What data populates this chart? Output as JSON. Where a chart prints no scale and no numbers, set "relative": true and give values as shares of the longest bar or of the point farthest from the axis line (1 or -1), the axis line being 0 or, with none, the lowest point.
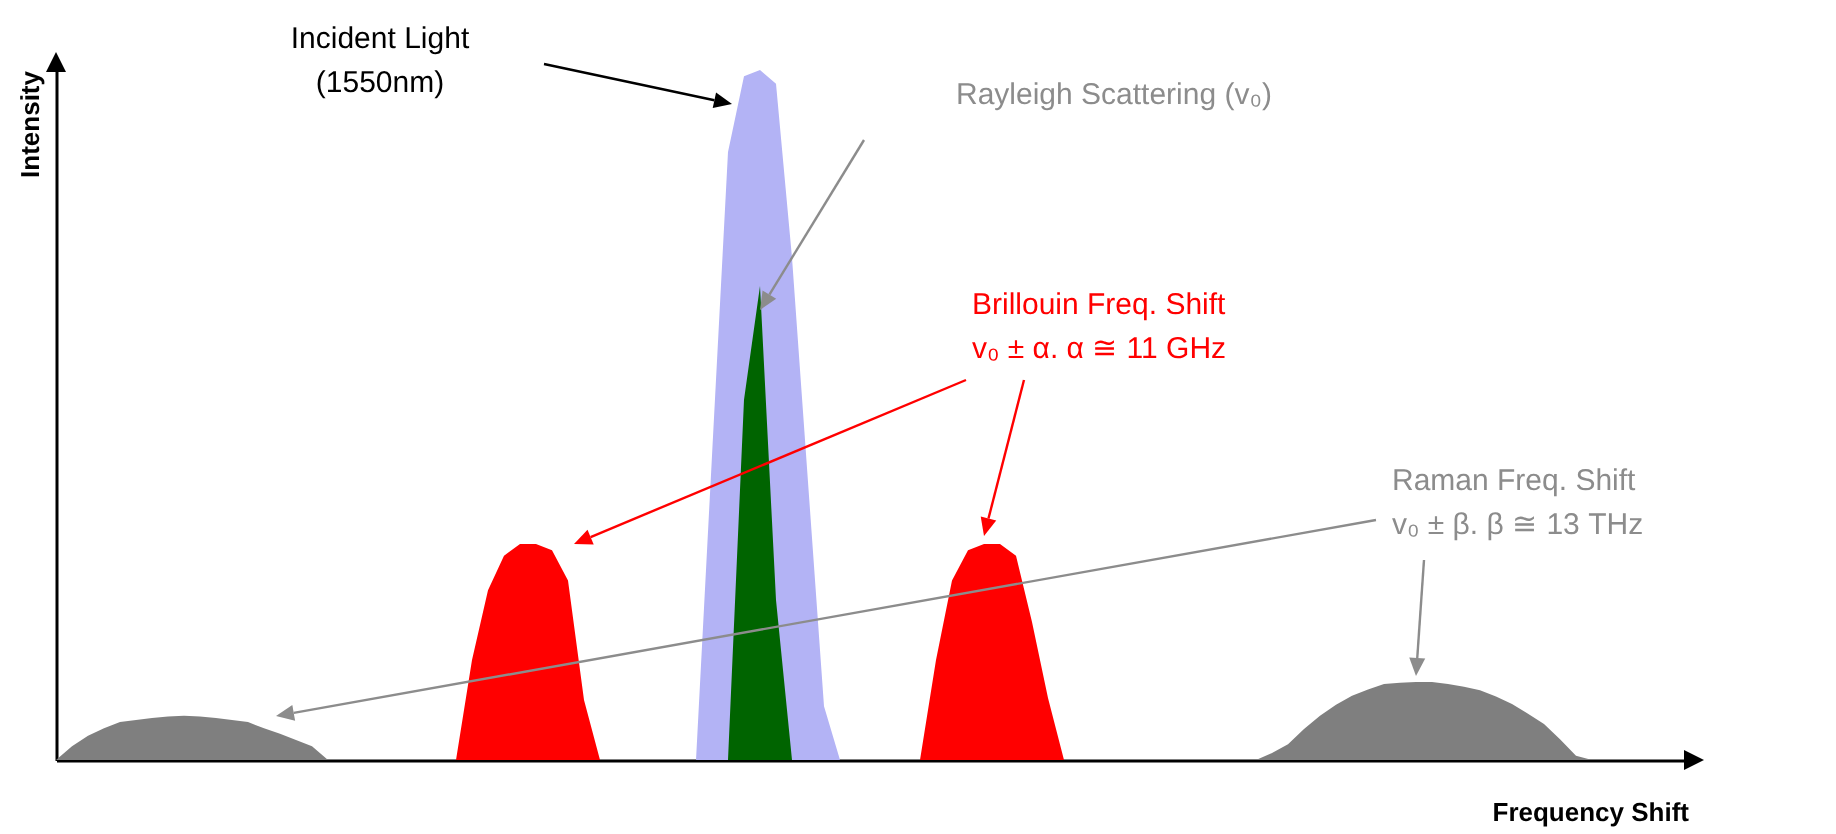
{
  "chart_data": {
    "type": "area",
    "relative": true,
    "xlabel": "Frequency Shift",
    "ylabel": "Intensity",
    "categories": [
      null,
      null,
      null,
      null,
      null,
      null,
      null,
      null,
      null,
      null,
      null,
      null,
      null,
      null,
      null,
      null,
      null,
      null,
      null,
      null,
      null,
      null,
      null,
      null,
      null,
      null,
      null,
      null,
      null,
      null,
      null,
      null,
      null,
      null,
      null,
      null,
      null,
      null,
      null,
      null,
      null,
      null,
      null,
      null,
      null,
      null,
      null,
      null,
      null,
      null,
      null,
      null,
      null,
      null,
      null,
      null,
      null,
      null,
      null,
      null,
      null,
      null,
      null,
      null,
      null,
      null,
      null,
      null,
      null,
      null,
      null,
      null,
      null,
      null,
      null,
      null,
      null,
      null,
      null,
      null,
      null,
      null,
      null,
      null,
      null,
      null,
      null,
      null,
      null,
      null,
      null,
      null,
      null,
      null,
      null,
      null,
      null,
      null,
      null,
      null,
      null,
      null,
      null
    ],
    "series": [
      {
        "color": "#7f7f7f",
        "values": [
          0,
          0.02,
          0.035,
          0.046,
          0.055,
          0.058,
          0.061,
          0.063,
          0.064,
          0.063,
          0.061,
          0.058,
          0.055,
          0.046,
          0.038,
          0.029,
          0.02,
          0,
          null,
          null,
          null,
          null,
          null,
          null,
          null,
          null,
          null,
          null,
          null,
          null,
          null,
          null,
          null,
          null,
          null,
          null,
          null,
          null,
          null,
          null,
          null,
          null,
          null,
          null,
          null,
          null,
          null,
          null,
          null,
          null,
          null,
          null,
          null,
          null,
          null,
          null,
          null,
          null,
          null,
          null,
          null,
          null,
          null,
          null,
          null,
          null,
          null,
          null,
          null,
          null,
          null,
          null,
          null,
          null,
          null,
          0,
          0.01,
          0.023,
          0.045,
          0.064,
          0.08,
          0.093,
          0.102,
          0.11,
          0.112,
          0.113,
          0.113,
          0.11,
          0.106,
          0.101,
          0.092,
          0.081,
          0.067,
          0.052,
          0.03,
          0.006,
          0,
          null,
          null,
          null,
          null,
          null,
          null
        ]
      },
      {
        "color": "#ff0000",
        "values": [
          null,
          null,
          null,
          null,
          null,
          null,
          null,
          null,
          null,
          null,
          null,
          null,
          null,
          null,
          null,
          null,
          null,
          null,
          null,
          null,
          null,
          null,
          null,
          null,
          null,
          0,
          0.145,
          0.246,
          0.296,
          0.313,
          0.313,
          0.304,
          0.26,
          0.087,
          0,
          null,
          null,
          null,
          null,
          null,
          null,
          null,
          null,
          null,
          null,
          null,
          null,
          null,
          null,
          null,
          null,
          null,
          null,
          null,
          0,
          0.145,
          0.26,
          0.304,
          0.313,
          0.313,
          0.296,
          0.2,
          0.09,
          0,
          null,
          null,
          null,
          null,
          null,
          null,
          null,
          null,
          null,
          null,
          null,
          null,
          null,
          null,
          null,
          null,
          null,
          null,
          null,
          null,
          null,
          null,
          null,
          null,
          null,
          null,
          null,
          null,
          null,
          null,
          null,
          null,
          null,
          null,
          null,
          null,
          null,
          null,
          null
        ]
      },
      {
        "color": "#b3b3f5",
        "values": [
          null,
          null,
          null,
          null,
          null,
          null,
          null,
          null,
          null,
          null,
          null,
          null,
          null,
          null,
          null,
          null,
          null,
          null,
          null,
          null,
          null,
          null,
          null,
          null,
          null,
          null,
          null,
          null,
          null,
          null,
          null,
          null,
          null,
          null,
          null,
          null,
          null,
          null,
          null,
          null,
          0,
          0.441,
          0.881,
          0.991,
          1,
          0.98,
          0.728,
          0.403,
          0.078,
          0,
          null,
          null,
          null,
          null,
          null,
          null,
          null,
          null,
          null,
          null,
          null,
          null,
          null,
          null,
          null,
          null,
          null,
          null,
          null,
          null,
          null,
          null,
          null,
          null,
          null,
          null,
          null,
          null,
          null,
          null,
          null,
          null,
          null,
          null,
          null,
          null,
          null,
          null,
          null,
          null,
          null,
          null,
          null,
          null,
          null,
          null,
          null,
          null,
          null,
          null,
          null,
          null,
          null
        ]
      },
      {
        "color": "#006400",
        "values": [
          null,
          null,
          null,
          null,
          null,
          null,
          null,
          null,
          null,
          null,
          null,
          null,
          null,
          null,
          null,
          null,
          null,
          null,
          null,
          null,
          null,
          null,
          null,
          null,
          null,
          null,
          null,
          null,
          null,
          null,
          null,
          null,
          null,
          null,
          null,
          null,
          null,
          null,
          null,
          null,
          null,
          null,
          0,
          0.522,
          0.687,
          0.232,
          0,
          null,
          null,
          null,
          null,
          null,
          null,
          null,
          null,
          null,
          null,
          null,
          null,
          null,
          null,
          null,
          null,
          null,
          null,
          null,
          null,
          null,
          null,
          null,
          null,
          null,
          null,
          null,
          null,
          null,
          null,
          null,
          null,
          null,
          null,
          null,
          null,
          null,
          null,
          null,
          null,
          null,
          null,
          null,
          null,
          null,
          null,
          null,
          null,
          null,
          null,
          null,
          null,
          null,
          null,
          null,
          null
        ]
      }
    ],
    "annotations": [
      "Incident Light\n(1550nm)",
      "Rayleigh Scattering (v₀)",
      "Brillouin Freq. Shift\nv₀ ± α.  α ≅ 11 GHz",
      "Raman Freq. Shift\nv₀ ± β.  β ≅ 13 THz"
    ]
  }
}
